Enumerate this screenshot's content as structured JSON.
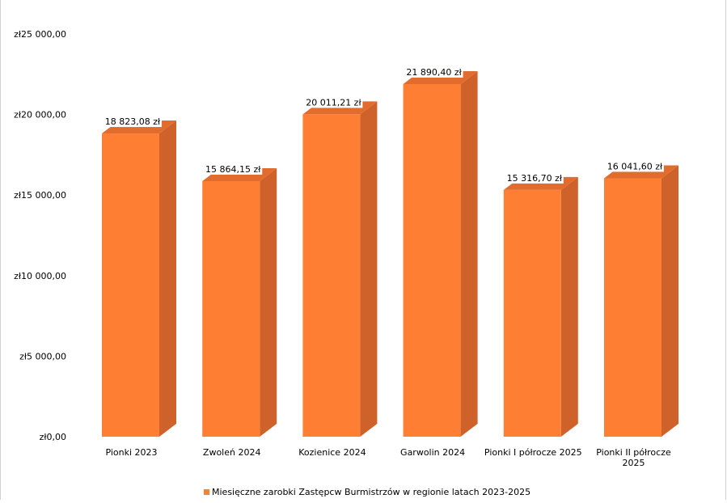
{
  "chart_data": {
    "type": "bar",
    "style": "3d-column",
    "categories": [
      "Pionki 2023",
      "Zwoleń 2024",
      "Kozienice 2024",
      "Garwolin 2024",
      "Pionki I półrocze 2025",
      "Pionki II półrocze\n2025"
    ],
    "series": [
      {
        "name": "Miesięczne zarobki Zastępcw Burmistrzów w regionie  latach 2023-2025",
        "values": [
          18823.08,
          15864.15,
          20011.21,
          21890.4,
          15316.7,
          16041.6
        ],
        "data_labels": [
          "18 823,08 zł",
          "15 864,15 zł",
          "20 011,21 zł",
          "21 890,40 zł",
          "15 316,70 zł",
          "16 041,60 zł"
        ]
      }
    ],
    "y_ticks": [
      0,
      5000,
      10000,
      15000,
      20000,
      25000
    ],
    "y_tick_labels": [
      "zł0,00",
      "zł5 000,00",
      "zł10 000,00",
      "zł15 000,00",
      "zł20 000,00",
      "zł25 000,00"
    ],
    "ylim": [
      0,
      25000
    ],
    "grid": false,
    "legend_position": "bottom",
    "colors": {
      "front": "#fe7f34",
      "side": "#cf622a",
      "top": "#e16c2e"
    }
  }
}
